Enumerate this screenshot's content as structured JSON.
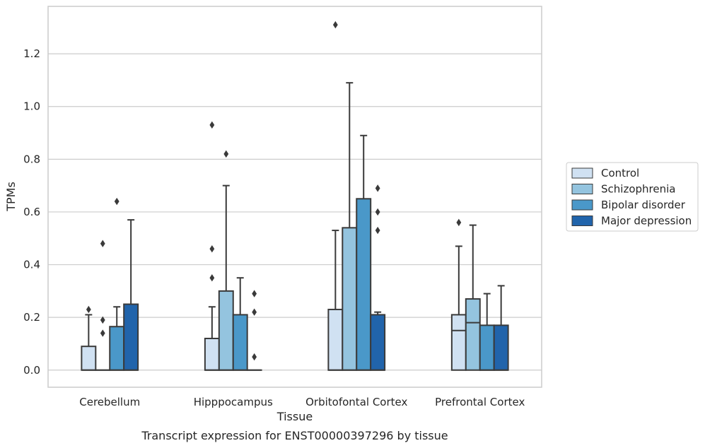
{
  "chart_data": {
    "type": "box",
    "xlabel": "Tissue",
    "ylabel": "TPMs",
    "caption": "Transcript expression for ENST00000397296 by tissue",
    "ylim": [
      -0.065,
      1.38
    ],
    "yticks": [
      "0.0",
      "0.2",
      "0.4",
      "0.6",
      "0.8",
      "1.0",
      "1.2"
    ],
    "ytick_values": [
      0.0,
      0.2,
      0.4,
      0.6,
      0.8,
      1.0,
      1.2
    ],
    "grid": "horizontal",
    "legend_position": "right",
    "categories": [
      "Cerebellum",
      "Hipppocampus",
      "Orbitofontal Cortex",
      "Prefrontal Cortex"
    ],
    "series": [
      {
        "name": "Control",
        "color": "#d0e1f2",
        "boxes": [
          {
            "q1": 0.0,
            "median": 0.0,
            "q3": 0.09,
            "whisker_low": 0.0,
            "whisker_high": 0.21,
            "outliers": [
              0.23
            ]
          },
          {
            "q1": 0.0,
            "median": 0.0,
            "q3": 0.12,
            "whisker_low": 0.0,
            "whisker_high": 0.24,
            "outliers": [
              0.35,
              0.46,
              0.93
            ]
          },
          {
            "q1": 0.0,
            "median": 0.0,
            "q3": 0.23,
            "whisker_low": 0.0,
            "whisker_high": 0.53,
            "outliers": [
              1.31
            ]
          },
          {
            "q1": 0.0,
            "median": 0.15,
            "q3": 0.21,
            "whisker_low": 0.0,
            "whisker_high": 0.47,
            "outliers": [
              0.56
            ]
          }
        ]
      },
      {
        "name": "Schizophrenia",
        "color": "#94c4df",
        "boxes": [
          {
            "q1": 0.0,
            "median": 0.0,
            "q3": 0.0,
            "whisker_low": 0.0,
            "whisker_high": 0.0,
            "outliers": [
              0.14,
              0.19,
              0.48
            ]
          },
          {
            "q1": 0.0,
            "median": 0.0,
            "q3": 0.3,
            "whisker_low": 0.0,
            "whisker_high": 0.7,
            "outliers": [
              0.82
            ]
          },
          {
            "q1": 0.0,
            "median": 0.0,
            "q3": 0.54,
            "whisker_low": 0.0,
            "whisker_high": 1.09,
            "outliers": []
          },
          {
            "q1": 0.0,
            "median": 0.18,
            "q3": 0.27,
            "whisker_low": 0.0,
            "whisker_high": 0.55,
            "outliers": []
          }
        ]
      },
      {
        "name": "Bipolar disorder",
        "color": "#4a98c9",
        "boxes": [
          {
            "q1": 0.0,
            "median": 0.0,
            "q3": 0.165,
            "whisker_low": 0.0,
            "whisker_high": 0.24,
            "outliers": [
              0.64
            ]
          },
          {
            "q1": 0.0,
            "median": 0.0,
            "q3": 0.21,
            "whisker_low": 0.0,
            "whisker_high": 0.35,
            "outliers": []
          },
          {
            "q1": 0.0,
            "median": 0.0,
            "q3": 0.65,
            "whisker_low": 0.0,
            "whisker_high": 0.89,
            "outliers": []
          },
          {
            "q1": 0.0,
            "median": 0.0,
            "q3": 0.17,
            "whisker_low": 0.0,
            "whisker_high": 0.29,
            "outliers": []
          }
        ]
      },
      {
        "name": "Major depression",
        "color": "#2164ab",
        "boxes": [
          {
            "q1": 0.0,
            "median": 0.0,
            "q3": 0.25,
            "whisker_low": 0.0,
            "whisker_high": 0.57,
            "outliers": []
          },
          {
            "q1": 0.0,
            "median": 0.0,
            "q3": 0.0,
            "whisker_low": 0.0,
            "whisker_high": 0.0,
            "outliers": [
              0.05,
              0.22,
              0.29
            ]
          },
          {
            "q1": 0.0,
            "median": 0.0,
            "q3": 0.21,
            "whisker_low": 0.0,
            "whisker_high": 0.22,
            "outliers": [
              0.53,
              0.6,
              0.69
            ]
          },
          {
            "q1": 0.0,
            "median": 0.0,
            "q3": 0.17,
            "whisker_low": 0.0,
            "whisker_high": 0.32,
            "outliers": []
          }
        ]
      }
    ],
    "colors": {
      "grid": "#cccccc",
      "frame": "#cccccc",
      "edge": "#3a3a3a",
      "text": "#262626"
    }
  }
}
